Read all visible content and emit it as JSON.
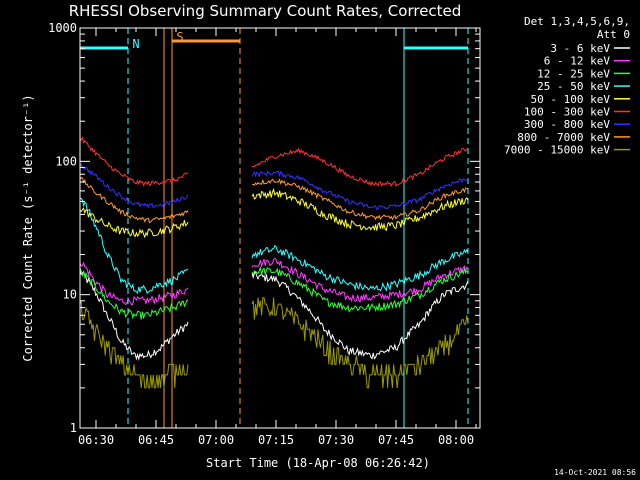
{
  "chart_data": {
    "type": "line",
    "title": "RHESSI Observing Summary Count Rates, Corrected",
    "xlabel": "Start Time (18-Apr-08 06:26:42)",
    "ylabel": "Corrected Count Rate (s⁻¹ detector⁻¹)",
    "yscale": "log",
    "ylim": [
      1,
      1000
    ],
    "xlim": [
      "06:26",
      "08:06"
    ],
    "x_ticks": [
      "06:30",
      "06:45",
      "07:00",
      "07:15",
      "07:30",
      "07:45",
      "08:00"
    ],
    "y_ticks": [
      "1",
      "10",
      "100",
      "1000"
    ],
    "legend_header": [
      "Det 1,3,4,5,6,9,",
      "Att 0"
    ],
    "legend_position": "right",
    "grid": false,
    "series": [
      {
        "name": "3 - 6 keV",
        "color": "#ffffff",
        "first": [
          15,
          11,
          7,
          4.5,
          3.5,
          3.5,
          4,
          5,
          6
        ],
        "second": [
          14,
          13,
          9,
          5.5,
          3.8,
          3.5,
          4,
          6,
          10,
          12
        ]
      },
      {
        "name": "6 - 12 keV",
        "color": "#ff3cff",
        "first": [
          18,
          13,
          10,
          9,
          9,
          9,
          9.5,
          10,
          11
        ],
        "second": [
          17,
          18,
          14,
          11,
          9.5,
          9.5,
          10,
          11,
          14,
          16
        ]
      },
      {
        "name": "12 - 25 keV",
        "color": "#33ff33",
        "first": [
          15,
          12,
          9,
          7.5,
          7,
          7,
          7.5,
          8,
          9
        ],
        "second": [
          15,
          15,
          12,
          9,
          8,
          8,
          8.5,
          10,
          13,
          15
        ]
      },
      {
        "name": "25 - 50 keV",
        "color": "#33ffff",
        "first": [
          55,
          35,
          20,
          13,
          11,
          11,
          12,
          13,
          15
        ],
        "second": [
          20,
          22,
          18,
          14,
          12,
          11,
          12,
          14,
          18,
          21
        ]
      },
      {
        "name": "50 - 100 keV",
        "color": "#ffff33",
        "first": [
          45,
          38,
          33,
          30,
          29,
          29,
          30,
          32,
          35
        ],
        "second": [
          55,
          58,
          50,
          40,
          34,
          32,
          33,
          38,
          46,
          52
        ]
      },
      {
        "name": "100 - 300 keV",
        "color": "#ff3333",
        "first": [
          150,
          120,
          95,
          80,
          70,
          68,
          70,
          72,
          80
        ],
        "second": [
          90,
          110,
          120,
          100,
          78,
          68,
          68,
          80,
          105,
          125
        ]
      },
      {
        "name": "300 - 800 keV",
        "color": "#3333ff",
        "first": [
          95,
          80,
          65,
          55,
          48,
          46,
          47,
          50,
          55
        ],
        "second": [
          80,
          82,
          75,
          60,
          50,
          45,
          46,
          52,
          65,
          75
        ]
      },
      {
        "name": "800 - 7000 keV",
        "color": "#ff9933",
        "first": [
          75,
          60,
          50,
          42,
          38,
          36,
          37,
          39,
          42
        ],
        "second": [
          68,
          72,
          64,
          52,
          42,
          38,
          38,
          43,
          55,
          62
        ]
      },
      {
        "name": "7000 - 15000 keV",
        "color": "#999900",
        "first": [
          8,
          5.5,
          4,
          3,
          2.5,
          2.3,
          2.4,
          2.6,
          3
        ],
        "second": [
          8,
          8,
          6,
          4,
          3,
          2.5,
          2.5,
          3,
          4,
          6
        ]
      }
    ],
    "segments": {
      "first": {
        "start": "06:26",
        "end": "06:53"
      },
      "second": {
        "start": "07:09",
        "end": "08:03"
      }
    },
    "annotations": [
      {
        "label": "N",
        "color": "#33ffff",
        "markers": [
          "06:26",
          "06:38"
        ],
        "bar": [
          "06:26",
          "06:38"
        ],
        "gap_end": [
          "07:47",
          "08:03"
        ]
      },
      {
        "label": "S",
        "color": "#ff9933",
        "markers": [
          "06:47",
          "06:49",
          "07:06"
        ],
        "bar": [
          "06:49",
          "07:06"
        ]
      }
    ],
    "timestamp": "14-Oct-2021 08:56"
  }
}
